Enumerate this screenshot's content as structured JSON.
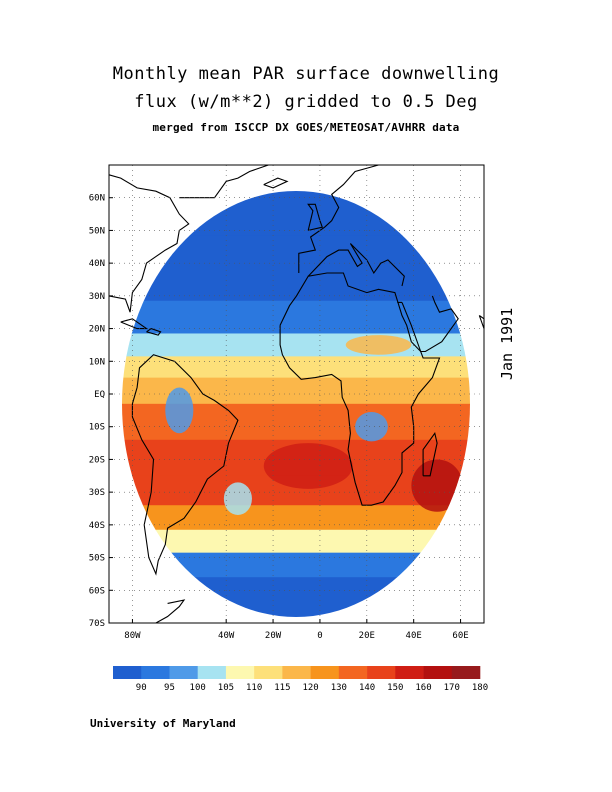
{
  "title": {
    "line1": "Monthly mean PAR surface downwelling",
    "line2": "flux (w/m**2) gridded to 0.5 Deg",
    "line3": "merged from ISCCP DX GOES/METEOSAT/AVHRR data"
  },
  "date_label": "Jan 1991",
  "footer": "University of Maryland",
  "map": {
    "lat_range": [
      -70,
      70
    ],
    "lon_range": [
      -90,
      70
    ],
    "lat_ticks": [
      "60N",
      "50N",
      "40N",
      "30N",
      "20N",
      "10N",
      "EQ",
      "10S",
      "20S",
      "30S",
      "40S",
      "50S",
      "60S",
      "70S"
    ],
    "lat_tick_values": [
      60,
      50,
      40,
      30,
      20,
      10,
      0,
      -10,
      -20,
      -30,
      -40,
      -50,
      -60,
      -70
    ],
    "lon_ticks": [
      "80W",
      "40W",
      "20W",
      "0",
      "20E",
      "40E",
      "60E"
    ],
    "lon_tick_values": [
      -80,
      -40,
      -20,
      0,
      20,
      40,
      60
    ],
    "grid": "dotted",
    "coverage": "METEOSAT disk",
    "bands": [
      {
        "lat": 62,
        "value": 90
      },
      {
        "lat": 35,
        "value": 90
      },
      {
        "lat": 22,
        "value": 95
      },
      {
        "lat": 15,
        "value": 105
      },
      {
        "lat": 8,
        "value": 115
      },
      {
        "lat": 2,
        "value": 125
      },
      {
        "lat": -8,
        "value": 140
      },
      {
        "lat": -20,
        "value": 155
      },
      {
        "lat": -30,
        "value": 150
      },
      {
        "lat": -38,
        "value": 135
      },
      {
        "lat": -45,
        "value": 110
      },
      {
        "lat": -52,
        "value": 95
      },
      {
        "lat": -60,
        "value": 90
      }
    ]
  },
  "colorbar": {
    "colors": [
      "#1f5fcf",
      "#2b78df",
      "#4f9ae8",
      "#a7e3f1",
      "#fdf8b0",
      "#fde07a",
      "#fbb74a",
      "#f7941d",
      "#f36621",
      "#e8421b",
      "#cf1d14",
      "#b3100f",
      "#971a1c"
    ],
    "labels": [
      "90",
      "95",
      "100",
      "105",
      "110",
      "115",
      "120",
      "130",
      "140",
      "150",
      "160",
      "170",
      "180"
    ]
  }
}
